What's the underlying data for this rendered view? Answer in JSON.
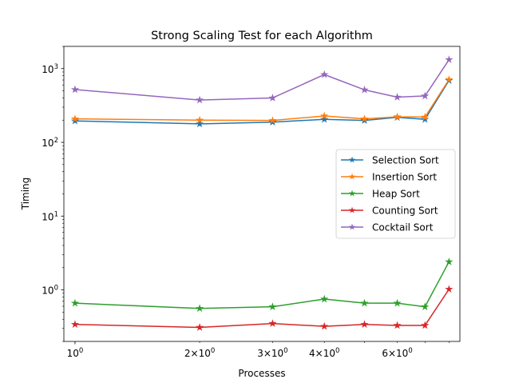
{
  "chart_data": {
    "type": "line",
    "title": "Strong Scaling Test for each Algorithm",
    "xlabel": "Processes",
    "ylabel": "Timing",
    "xscale": "log",
    "yscale": "log",
    "xlim": [
      0.94,
      8.5
    ],
    "ylim": [
      0.2,
      2000
    ],
    "x": [
      1,
      2,
      3,
      4,
      5,
      6,
      7,
      8
    ],
    "x_tick_values": [
      1,
      2,
      3,
      4,
      6
    ],
    "x_tick_labels": [
      "10^0",
      "2×10^0",
      "3×10^0",
      "4×10^0",
      "6×10^0"
    ],
    "y_tick_values": [
      1,
      10,
      100,
      1000
    ],
    "y_tick_labels": [
      "10^0",
      "10^1",
      "10^2",
      "10^3"
    ],
    "marker": "star",
    "legend_position": "center-right",
    "series": [
      {
        "name": "Selection Sort",
        "color": "#1f77b4",
        "values": [
          195,
          178,
          188,
          205,
          198,
          218,
          205,
          690
        ]
      },
      {
        "name": "Insertion Sort",
        "color": "#ff7f0e",
        "values": [
          208,
          200,
          198,
          228,
          208,
          222,
          220,
          710
        ]
      },
      {
        "name": "Heap Sort",
        "color": "#2ca02c",
        "values": [
          0.66,
          0.56,
          0.59,
          0.75,
          0.66,
          0.66,
          0.59,
          2.4
        ]
      },
      {
        "name": "Counting Sort",
        "color": "#d62728",
        "values": [
          0.34,
          0.31,
          0.35,
          0.32,
          0.34,
          0.33,
          0.33,
          1.02
        ]
      },
      {
        "name": "Cocktail Sort",
        "color": "#9467bd",
        "values": [
          520,
          375,
          400,
          830,
          515,
          410,
          425,
          1320
        ]
      }
    ]
  }
}
